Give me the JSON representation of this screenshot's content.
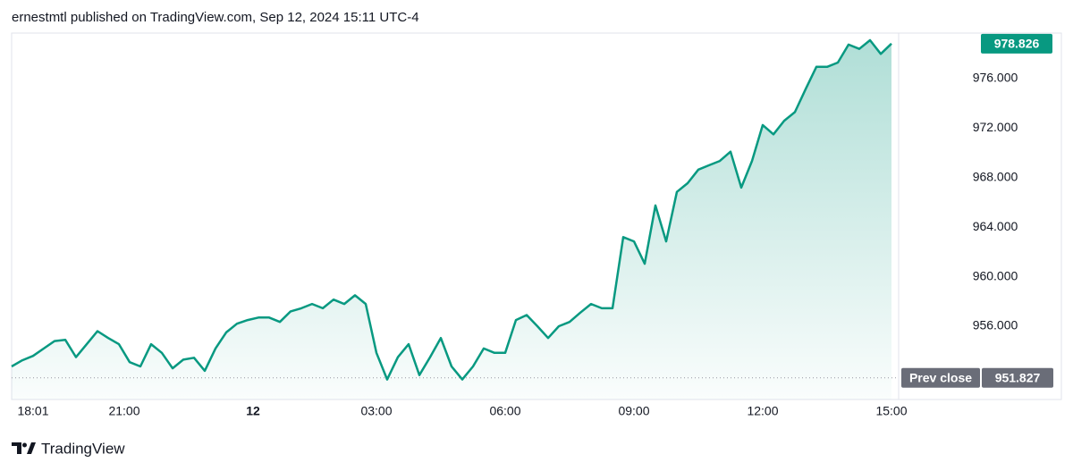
{
  "header": {
    "text": "ernestmtl published on TradingView.com, Sep 12, 2024 15:11 UTC-4"
  },
  "footer": {
    "brand": "TradingView"
  },
  "chart_data": {
    "type": "area",
    "color": "#089981",
    "values": [
      952.75,
      953.25,
      953.6,
      954.2,
      954.8,
      954.9,
      953.5,
      954.55,
      955.6,
      955.05,
      954.55,
      953.1,
      952.75,
      954.55,
      953.85,
      952.6,
      953.3,
      953.45,
      952.4,
      954.2,
      955.5,
      956.2,
      956.5,
      956.7,
      956.7,
      956.35,
      957.2,
      957.45,
      957.8,
      957.45,
      958.15,
      957.8,
      958.5,
      957.8,
      953.85,
      951.7,
      953.5,
      954.55,
      952.05,
      953.5,
      955.05,
      952.75,
      951.7,
      952.75,
      954.2,
      953.85,
      953.85,
      956.5,
      956.9,
      956.0,
      955.05,
      956.0,
      956.35,
      957.1,
      957.8,
      957.45,
      957.45,
      963.2,
      962.85,
      961.05,
      965.75,
      962.85,
      966.85,
      967.55,
      968.65,
      969.0,
      969.35,
      970.1,
      967.2,
      969.35,
      972.25,
      971.5,
      972.6,
      973.3,
      975.15,
      976.95,
      976.95,
      977.3,
      978.75,
      978.4,
      979.1,
      978.0,
      978.826
    ],
    "xlim": [
      0,
      82.5
    ],
    "xticks": [
      {
        "value": 2,
        "label": "18:01"
      },
      {
        "value": 10.5,
        "label": "21:00"
      },
      {
        "value": 22.5,
        "label": "12"
      },
      {
        "value": 34,
        "label": "03:00"
      },
      {
        "value": 46,
        "label": "06:00"
      },
      {
        "value": 58,
        "label": "09:00"
      },
      {
        "value": 70,
        "label": "12:00"
      },
      {
        "value": 82,
        "label": "15:00"
      }
    ],
    "ylim": [
      950.08,
      979.68
    ],
    "yticks": [
      {
        "value": 956,
        "label": "956.000"
      },
      {
        "value": 960,
        "label": "960.000"
      },
      {
        "value": 964,
        "label": "964.000"
      },
      {
        "value": 968,
        "label": "968.000"
      },
      {
        "value": 972,
        "label": "972.000"
      },
      {
        "value": 976,
        "label": "976.000"
      }
    ],
    "grid": false,
    "prev_close": {
      "label": "Prev close",
      "value": 951.827
    }
  }
}
